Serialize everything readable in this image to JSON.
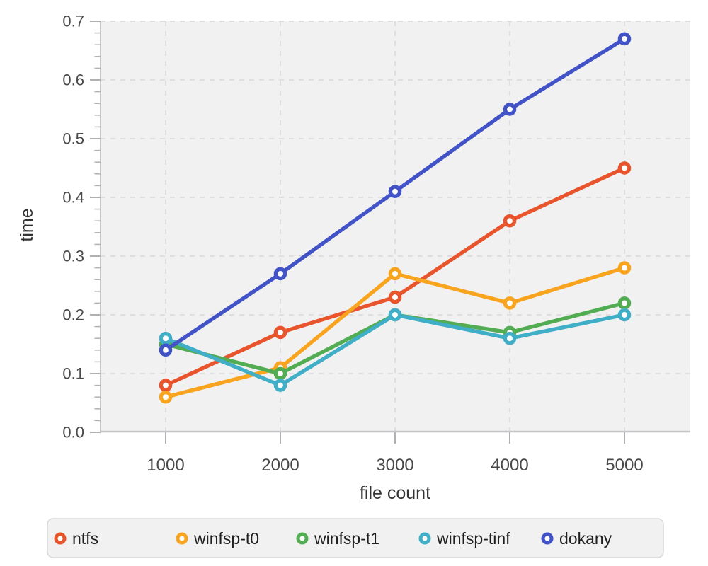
{
  "chart_data": {
    "type": "line",
    "title": "",
    "xlabel": "file count",
    "ylabel": "time",
    "x": [
      1000,
      2000,
      3000,
      4000,
      5000
    ],
    "x_tick_labels": [
      "1000",
      "2000",
      "3000",
      "4000",
      "5000"
    ],
    "series": [
      {
        "name": "ntfs",
        "color": "#E8542C",
        "values": [
          0.08,
          0.17,
          0.23,
          0.36,
          0.45
        ]
      },
      {
        "name": "winfsp-t0",
        "color": "#F9A41F",
        "values": [
          0.06,
          0.11,
          0.27,
          0.22,
          0.28
        ]
      },
      {
        "name": "winfsp-t1",
        "color": "#52AD52",
        "values": [
          0.15,
          0.1,
          0.2,
          0.17,
          0.22
        ]
      },
      {
        "name": "winfsp-tinf",
        "color": "#3FAEC6",
        "values": [
          0.16,
          0.08,
          0.2,
          0.16,
          0.2
        ]
      },
      {
        "name": "dokany",
        "color": "#4153C6",
        "values": [
          0.14,
          0.27,
          0.41,
          0.55,
          0.67
        ]
      }
    ],
    "ylim": [
      0.0,
      0.7
    ],
    "y_major_step": 0.1,
    "y_minor_step": 0.02,
    "y_tick_labels": [
      "0.0",
      "0.1",
      "0.2",
      "0.3",
      "0.4",
      "0.5",
      "0.6",
      "0.7"
    ],
    "grid": "dashed-major-both-axes",
    "marker": "open-circle",
    "legend_position": "bottom",
    "legend_items": [
      "ntfs",
      "winfsp-t0",
      "winfsp-t1",
      "winfsp-tinf",
      "dokany"
    ]
  },
  "colors": {
    "page_background": "#FFFFFF",
    "plot_background": "#F1F1F2",
    "grid_line": "#D9D9DB",
    "axis_line": "#C6C6C8",
    "tick_mark": "#B1B1B4",
    "tick_label": "#4A4A4A",
    "axis_title": "#333333",
    "legend_background": "#F1F1F2",
    "legend_border": "#D8D8DA",
    "legend_text": "#1F1F1F"
  }
}
